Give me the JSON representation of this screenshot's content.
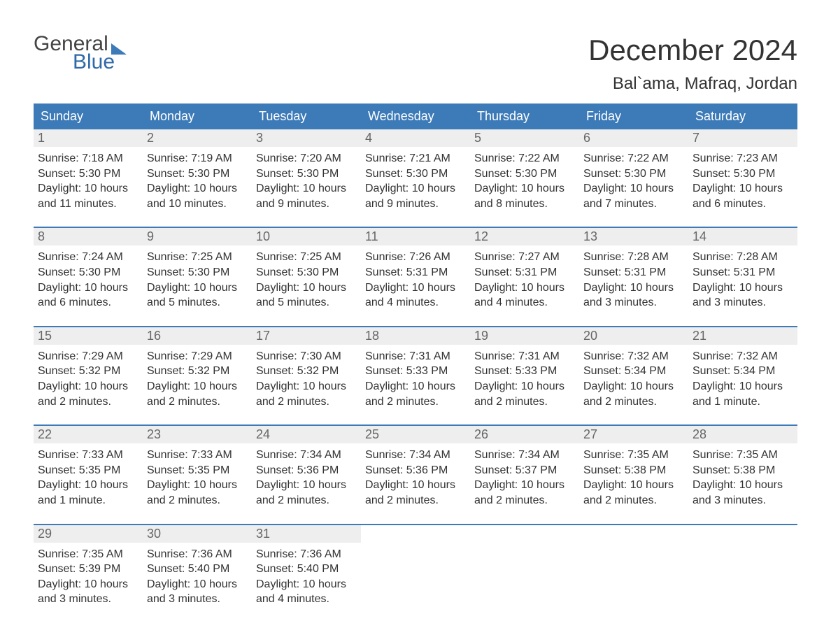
{
  "brand": {
    "word1": "General",
    "word2": "Blue"
  },
  "title": "December 2024",
  "location": "Bal`ama, Mafraq, Jordan",
  "colors": {
    "header_bg": "#3c7ab8",
    "header_text": "#ffffff",
    "daynum_bg": "#eeeeee",
    "daynum_text": "#666666",
    "body_text": "#333333",
    "week_border": "#3c7ab8",
    "page_bg": "#ffffff",
    "brand_gray": "#444444",
    "brand_blue": "#2f6aa8"
  },
  "typography": {
    "title_fontsize": 42,
    "location_fontsize": 24,
    "header_fontsize": 18,
    "daynum_fontsize": 18,
    "body_fontsize": 16,
    "font_family": "Arial"
  },
  "layout": {
    "columns": 7,
    "rows": 5,
    "first_weekday": "Sunday",
    "start_day_index": 0,
    "days_in_month": 31
  },
  "day_headers": [
    "Sunday",
    "Monday",
    "Tuesday",
    "Wednesday",
    "Thursday",
    "Friday",
    "Saturday"
  ],
  "days": [
    {
      "n": 1,
      "sunrise": "7:18 AM",
      "sunset": "5:30 PM",
      "daylight": "10 hours and 11 minutes."
    },
    {
      "n": 2,
      "sunrise": "7:19 AM",
      "sunset": "5:30 PM",
      "daylight": "10 hours and 10 minutes."
    },
    {
      "n": 3,
      "sunrise": "7:20 AM",
      "sunset": "5:30 PM",
      "daylight": "10 hours and 9 minutes."
    },
    {
      "n": 4,
      "sunrise": "7:21 AM",
      "sunset": "5:30 PM",
      "daylight": "10 hours and 9 minutes."
    },
    {
      "n": 5,
      "sunrise": "7:22 AM",
      "sunset": "5:30 PM",
      "daylight": "10 hours and 8 minutes."
    },
    {
      "n": 6,
      "sunrise": "7:22 AM",
      "sunset": "5:30 PM",
      "daylight": "10 hours and 7 minutes."
    },
    {
      "n": 7,
      "sunrise": "7:23 AM",
      "sunset": "5:30 PM",
      "daylight": "10 hours and 6 minutes."
    },
    {
      "n": 8,
      "sunrise": "7:24 AM",
      "sunset": "5:30 PM",
      "daylight": "10 hours and 6 minutes."
    },
    {
      "n": 9,
      "sunrise": "7:25 AM",
      "sunset": "5:30 PM",
      "daylight": "10 hours and 5 minutes."
    },
    {
      "n": 10,
      "sunrise": "7:25 AM",
      "sunset": "5:30 PM",
      "daylight": "10 hours and 5 minutes."
    },
    {
      "n": 11,
      "sunrise": "7:26 AM",
      "sunset": "5:31 PM",
      "daylight": "10 hours and 4 minutes."
    },
    {
      "n": 12,
      "sunrise": "7:27 AM",
      "sunset": "5:31 PM",
      "daylight": "10 hours and 4 minutes."
    },
    {
      "n": 13,
      "sunrise": "7:28 AM",
      "sunset": "5:31 PM",
      "daylight": "10 hours and 3 minutes."
    },
    {
      "n": 14,
      "sunrise": "7:28 AM",
      "sunset": "5:31 PM",
      "daylight": "10 hours and 3 minutes."
    },
    {
      "n": 15,
      "sunrise": "7:29 AM",
      "sunset": "5:32 PM",
      "daylight": "10 hours and 2 minutes."
    },
    {
      "n": 16,
      "sunrise": "7:29 AM",
      "sunset": "5:32 PM",
      "daylight": "10 hours and 2 minutes."
    },
    {
      "n": 17,
      "sunrise": "7:30 AM",
      "sunset": "5:32 PM",
      "daylight": "10 hours and 2 minutes."
    },
    {
      "n": 18,
      "sunrise": "7:31 AM",
      "sunset": "5:33 PM",
      "daylight": "10 hours and 2 minutes."
    },
    {
      "n": 19,
      "sunrise": "7:31 AM",
      "sunset": "5:33 PM",
      "daylight": "10 hours and 2 minutes."
    },
    {
      "n": 20,
      "sunrise": "7:32 AM",
      "sunset": "5:34 PM",
      "daylight": "10 hours and 2 minutes."
    },
    {
      "n": 21,
      "sunrise": "7:32 AM",
      "sunset": "5:34 PM",
      "daylight": "10 hours and 1 minute."
    },
    {
      "n": 22,
      "sunrise": "7:33 AM",
      "sunset": "5:35 PM",
      "daylight": "10 hours and 1 minute."
    },
    {
      "n": 23,
      "sunrise": "7:33 AM",
      "sunset": "5:35 PM",
      "daylight": "10 hours and 2 minutes."
    },
    {
      "n": 24,
      "sunrise": "7:34 AM",
      "sunset": "5:36 PM",
      "daylight": "10 hours and 2 minutes."
    },
    {
      "n": 25,
      "sunrise": "7:34 AM",
      "sunset": "5:36 PM",
      "daylight": "10 hours and 2 minutes."
    },
    {
      "n": 26,
      "sunrise": "7:34 AM",
      "sunset": "5:37 PM",
      "daylight": "10 hours and 2 minutes."
    },
    {
      "n": 27,
      "sunrise": "7:35 AM",
      "sunset": "5:38 PM",
      "daylight": "10 hours and 2 minutes."
    },
    {
      "n": 28,
      "sunrise": "7:35 AM",
      "sunset": "5:38 PM",
      "daylight": "10 hours and 3 minutes."
    },
    {
      "n": 29,
      "sunrise": "7:35 AM",
      "sunset": "5:39 PM",
      "daylight": "10 hours and 3 minutes."
    },
    {
      "n": 30,
      "sunrise": "7:36 AM",
      "sunset": "5:40 PM",
      "daylight": "10 hours and 3 minutes."
    },
    {
      "n": 31,
      "sunrise": "7:36 AM",
      "sunset": "5:40 PM",
      "daylight": "10 hours and 4 minutes."
    }
  ],
  "labels": {
    "sunrise": "Sunrise:",
    "sunset": "Sunset:",
    "daylight": "Daylight:"
  }
}
